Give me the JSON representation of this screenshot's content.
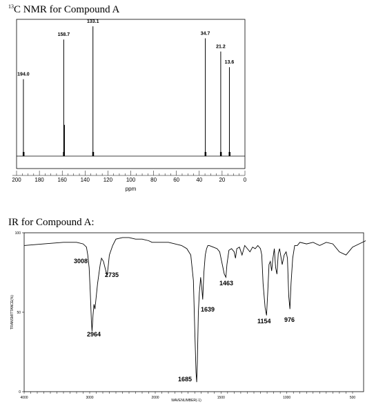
{
  "nmr_title": {
    "sup": "13",
    "text": "C NMR for Compound A"
  },
  "ir_title": "IR for Compound A:",
  "chart_data": [
    {
      "type": "line",
      "title": "13C NMR for Compound A",
      "xlabel": "ppm",
      "ylabel": "",
      "xlim": [
        200,
        0
      ],
      "x_ticks": [
        200,
        180,
        160,
        140,
        120,
        100,
        80,
        60,
        40,
        20,
        0
      ],
      "peaks": [
        {
          "ppm": 194.0,
          "label": "194.0",
          "height": 0.64
        },
        {
          "ppm": 158.7,
          "label": "158.7",
          "height": 0.97,
          "inner": 0.26
        },
        {
          "ppm": 133.1,
          "label": "133.1",
          "height": 1.08
        },
        {
          "ppm": 34.7,
          "label": "34.7",
          "height": 0.98
        },
        {
          "ppm": 21.2,
          "label": "21.2",
          "height": 0.87
        },
        {
          "ppm": 13.6,
          "label": "13.6",
          "height": 0.74
        }
      ]
    },
    {
      "type": "line",
      "title": "IR for Compound A:",
      "xlabel": "WAVENUMBER(-1)",
      "ylabel": "TRANSMITTANCE(%)",
      "y_ticks": [
        "100",
        "50",
        "0"
      ],
      "x_ticks": [
        "4000",
        "3000",
        "2000",
        "1500",
        "1000",
        "500"
      ],
      "annotations": [
        "3008",
        "2964",
        "2735",
        "1685",
        "1639",
        "1463",
        "1154",
        "976"
      ],
      "spectrum_wavenumber": [
        4000,
        3700,
        3400,
        3200,
        3100,
        3050,
        3030,
        3008,
        2990,
        2975,
        2964,
        2950,
        2935,
        2920,
        2900,
        2880,
        2860,
        2840,
        2820,
        2790,
        2760,
        2735,
        2720,
        2700,
        2650,
        2600,
        2500,
        2400,
        2300,
        2200,
        2100,
        2050,
        2000,
        1950,
        1900,
        1850,
        1800,
        1760,
        1730,
        1710,
        1700,
        1690,
        1685,
        1680,
        1672,
        1665,
        1655,
        1645,
        1639,
        1630,
        1620,
        1610,
        1600,
        1590,
        1560,
        1530,
        1510,
        1490,
        1475,
        1463,
        1455,
        1440,
        1420,
        1400,
        1390,
        1380,
        1360,
        1340,
        1320,
        1300,
        1280,
        1260,
        1240,
        1220,
        1200,
        1190,
        1180,
        1165,
        1154,
        1145,
        1135,
        1125,
        1115,
        1105,
        1095,
        1085,
        1075,
        1065,
        1055,
        1045,
        1035,
        1020,
        1005,
        995,
        985,
        976,
        968,
        955,
        940,
        920,
        900,
        850,
        800,
        750,
        700,
        650,
        600,
        550,
        500,
        450,
        400
      ],
      "spectrum_transmittance": [
        92,
        93,
        94,
        94,
        93,
        91,
        86,
        78,
        62,
        45,
        38,
        48,
        55,
        52,
        60,
        68,
        74,
        80,
        84,
        82,
        77,
        73,
        78,
        86,
        92,
        96,
        97,
        97,
        96,
        96,
        95,
        94,
        94,
        94,
        94,
        93,
        92,
        90,
        86,
        70,
        40,
        12,
        6,
        18,
        50,
        62,
        72,
        64,
        58,
        75,
        86,
        90,
        92,
        92,
        91,
        90,
        88,
        80,
        74,
        72,
        80,
        89,
        90,
        88,
        84,
        90,
        91,
        86,
        92,
        90,
        88,
        91,
        90,
        92,
        90,
        86,
        68,
        53,
        48,
        62,
        80,
        82,
        76,
        84,
        90,
        78,
        74,
        87,
        90,
        85,
        80,
        86,
        88,
        84,
        60,
        52,
        68,
        84,
        92,
        92,
        94,
        93,
        94,
        92,
        94,
        93,
        88,
        86,
        91,
        93,
        95
      ]
    }
  ]
}
